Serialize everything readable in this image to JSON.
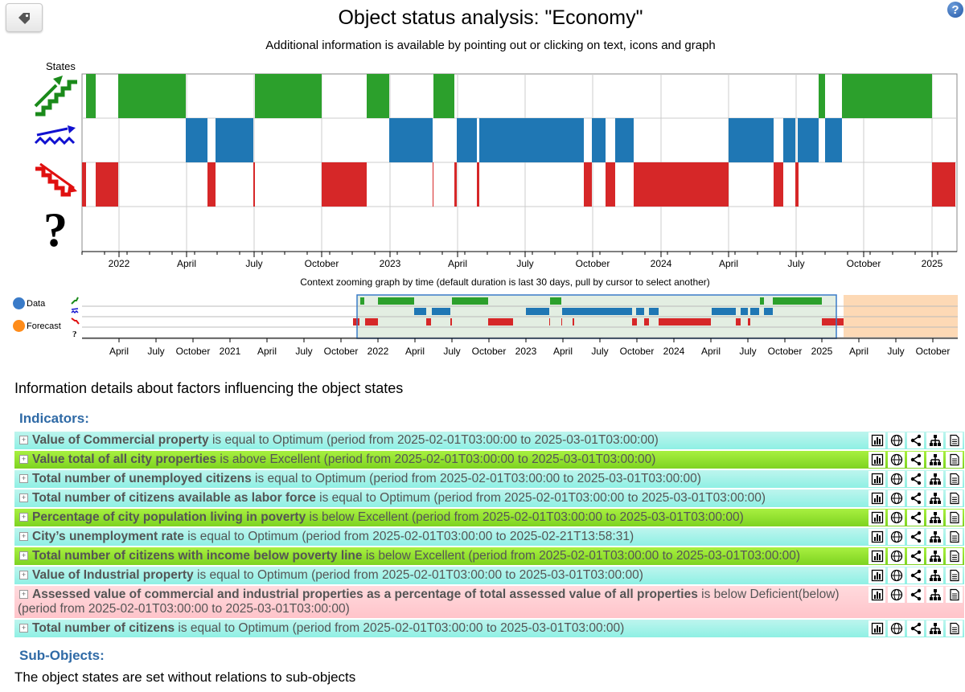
{
  "page": {
    "title": "Object status analysis: \"Economy\"",
    "subtitle": "Additional information is available by pointing out or clicking on text, icons and graph",
    "help_label": "?"
  },
  "main_chart": {
    "states_label": "States",
    "tick_labels": [
      "2022",
      "April",
      "July",
      "October",
      "2023",
      "April",
      "July",
      "October",
      "2024",
      "April",
      "July",
      "October",
      "2025"
    ],
    "colors": {
      "up": "#2ca02c",
      "flat": "#1f77b4",
      "down": "#d62728",
      "grid": "#cccccc"
    }
  },
  "context_chart": {
    "label": "Context zooming graph by time (default duration is last 30 days, pull by cursor to select another)",
    "legend": [
      {
        "label": "Data",
        "color": "#3a7bc8"
      },
      {
        "label": "Forecast",
        "color": "#ff8c1a"
      }
    ],
    "tick_labels": [
      "April",
      "July",
      "October",
      "2021",
      "April",
      "July",
      "October",
      "2022",
      "April",
      "July",
      "October",
      "2023",
      "April",
      "July",
      "October",
      "2024",
      "April",
      "July",
      "October",
      "2025",
      "April",
      "July",
      "October"
    ],
    "colors": {
      "selection": "#e3eee2",
      "selection_border": "#3a7bc8",
      "forecast": "#fdd9b5"
    }
  },
  "details": {
    "heading": "Information details about factors influencing the object states",
    "indicators_heading": "Indicators:",
    "indicators": [
      {
        "name": "Value of Commercial property",
        "text": " is equal to Optimum (period from 2025-02-01T03:00:00 to 2025-03-01T03:00:00)"
      },
      {
        "name": "Value total of all city properties",
        "text": " is above Excellent (period from 2025-02-01T03:00:00 to 2025-03-01T03:00:00)"
      },
      {
        "name": "Total number of unemployed citizens",
        "text": " is equal to Optimum (period from 2025-02-01T03:00:00 to 2025-03-01T03:00:00)"
      },
      {
        "name": "Total number of citizens available as labor force",
        "text": " is equal to Optimum (period from 2025-02-01T03:00:00 to 2025-03-01T03:00:00)"
      },
      {
        "name": "Percentage of city population living in poverty",
        "text": " is below Excellent (period from 2025-02-01T03:00:00 to 2025-03-01T03:00:00)"
      },
      {
        "name": "City’s unemployment rate",
        "text": " is equal to Optimum (period from 2025-02-01T03:00:00 to 2025-02-21T13:58:31)"
      },
      {
        "name": "Total number of citizens with income below poverty line",
        "text": " is below Excellent (period from 2025-02-01T03:00:00 to 2025-03-01T03:00:00)"
      },
      {
        "name": "Value of Industrial property",
        "text": " is equal to Optimum (period from 2025-02-01T03:00:00 to 2025-03-01T03:00:00)"
      },
      {
        "name": "Assessed value of commercial and industrial properties as a percentage of total assessed value of all properties",
        "text": " is below Deficient(below) (period from 2025-02-01T03:00:00 to 2025-03-01T03:00:00)"
      },
      {
        "name": "Total number of citizens",
        "text": " is equal to Optimum (period from 2025-02-01T03:00:00 to 2025-03-01T03:00:00)"
      }
    ],
    "subobjects_heading": "Sub-Objects:",
    "subobjects_text": "The object states are set without relations to sub-objects"
  }
}
